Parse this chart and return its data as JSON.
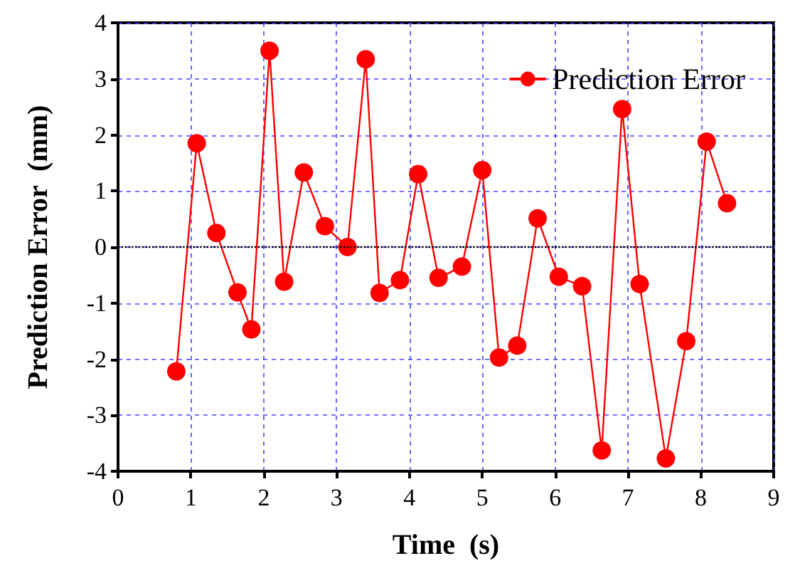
{
  "chart_data": {
    "type": "line",
    "xlabel": "Time  (s)",
    "ylabel": "Prediction Error  (mm)",
    "xlim": [
      0,
      9
    ],
    "xticks": [
      0,
      1,
      2,
      3,
      4,
      5,
      6,
      7,
      8,
      9
    ],
    "ylim": [
      -4,
      4
    ],
    "yticks": [
      -4,
      -3,
      -2,
      -1,
      0,
      1,
      2,
      3,
      4
    ],
    "grid": true,
    "legend": "top right",
    "marker": "circle",
    "line_style": "solid",
    "ref_lines": [
      {
        "axis": "y",
        "value": 0,
        "color": "#000000",
        "line_style": "dotted"
      }
    ],
    "series": [
      {
        "name": "Prediction Error",
        "color": "#ff0000",
        "x": [
          0.8,
          1.08,
          1.35,
          1.64,
          1.83,
          2.08,
          2.28,
          2.55,
          2.84,
          3.15,
          3.4,
          3.59,
          3.87,
          4.12,
          4.4,
          4.72,
          5.0,
          5.23,
          5.48,
          5.76,
          6.05,
          6.37,
          6.64,
          6.92,
          7.16,
          7.52,
          7.8,
          8.08,
          8.36
        ],
        "values": [
          -2.22,
          1.85,
          0.25,
          -0.81,
          -1.47,
          3.5,
          -0.62,
          1.33,
          0.37,
          0.0,
          3.35,
          -0.82,
          -0.59,
          1.3,
          -0.55,
          -0.35,
          1.37,
          -1.97,
          -1.76,
          0.51,
          -0.53,
          -0.7,
          -3.63,
          2.46,
          -0.66,
          -3.77,
          -1.68,
          1.88,
          0.78
        ]
      }
    ]
  }
}
